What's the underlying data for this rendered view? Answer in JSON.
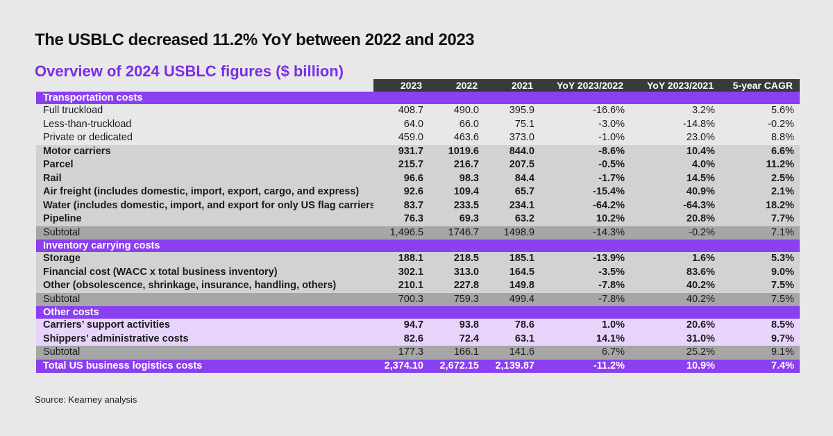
{
  "title": "The USBLC decreased 11.2% YoY between 2022 and 2023",
  "subtitle": "Overview of 2024 USBLC figures ($ billion)",
  "source": "Source: Kearney analysis",
  "colors": {
    "accent": "#8a3ff0",
    "subtitle": "#7a2ee6",
    "header_bg": "#3a3a3a",
    "light_purple": "#e8d4fb",
    "gray_bold_row": "#d2d2d2",
    "subtotal": "#a6a6a6",
    "background": "#e8e8e8"
  },
  "chart_data": {
    "type": "table",
    "columns": [
      "",
      "2023",
      "2022",
      "2021",
      "YoY 2023/2022",
      "YoY 2023/2021",
      "5-year CAGR"
    ],
    "rows": [
      {
        "kind": "section",
        "cells": [
          "Transportation costs",
          "",
          "",
          "",
          "",
          "",
          ""
        ]
      },
      {
        "kind": "plain",
        "cells": [
          "Full truckload",
          "408.7",
          "490.0",
          "395.9",
          "-16.6%",
          "3.2%",
          "5.6%"
        ]
      },
      {
        "kind": "plain",
        "cells": [
          "Less-than-truckload",
          "64.0",
          "66.0",
          "75.1",
          "-3.0%",
          "-14.8%",
          "-0.2%"
        ]
      },
      {
        "kind": "plain",
        "cells": [
          "Private or dedicated",
          "459.0",
          "463.6",
          "373.0",
          "-1.0%",
          "23.0%",
          "8.8%"
        ]
      },
      {
        "kind": "bold",
        "cells": [
          "Motor carriers",
          "931.7",
          "1019.6",
          "844.0",
          "-8.6%",
          "10.4%",
          "6.6%"
        ]
      },
      {
        "kind": "bold",
        "cells": [
          "Parcel",
          "215.7",
          "216.7",
          "207.5",
          "-0.5%",
          "4.0%",
          "11.2%"
        ]
      },
      {
        "kind": "bold",
        "cells": [
          "Rail",
          "96.6",
          "98.3",
          "84.4",
          "-1.7%",
          "14.5%",
          "2.5%"
        ]
      },
      {
        "kind": "bold",
        "cells": [
          "Air freight (includes domestic, import, export, cargo, and express)",
          "92.6",
          "109.4",
          "65.7",
          "-15.4%",
          "40.9%",
          "2.1%"
        ]
      },
      {
        "kind": "bold",
        "cells": [
          "Water (includes domestic, import, and export for only US flag carriers)",
          "83.7",
          "233.5",
          "234.1",
          "-64.2%",
          "-64.3%",
          "18.2%"
        ]
      },
      {
        "kind": "bold",
        "cells": [
          "Pipeline",
          "76.3",
          "69.3",
          "63.2",
          "10.2%",
          "20.8%",
          "7.7%"
        ]
      },
      {
        "kind": "subtotal",
        "cells": [
          "Subtotal",
          "1,496.5",
          "1746.7",
          "1498.9",
          "-14.3%",
          "-0.2%",
          "7.1%"
        ]
      },
      {
        "kind": "section",
        "cells": [
          "Inventory carrying costs",
          "",
          "",
          "",
          "",
          "",
          ""
        ]
      },
      {
        "kind": "bold",
        "cells": [
          "Storage",
          "188.1",
          "218.5",
          "185.1",
          "-13.9%",
          "1.6%",
          "5.3%"
        ]
      },
      {
        "kind": "bold",
        "cells": [
          "Financial cost (WACC x total business inventory)",
          "302.1",
          "313.0",
          "164.5",
          "-3.5%",
          "83.6%",
          "9.0%"
        ]
      },
      {
        "kind": "bold",
        "cells": [
          "Other (obsolescence, shrinkage, insurance, handling, others)",
          "210.1",
          "227.8",
          "149.8",
          "-7.8%",
          "40.2%",
          "7.5%"
        ]
      },
      {
        "kind": "subtotal",
        "cells": [
          "Subtotal",
          "700.3",
          "759.3",
          "499.4",
          "-7.8%",
          "40.2%",
          "7.5%"
        ]
      },
      {
        "kind": "section",
        "cells": [
          "Other costs",
          "",
          "",
          "",
          "",
          "",
          ""
        ]
      },
      {
        "kind": "purple",
        "cells": [
          "Carriers’ support activities",
          "94.7",
          "93.8",
          "78.6",
          "1.0%",
          "20.6%",
          "8.5%"
        ]
      },
      {
        "kind": "purple",
        "cells": [
          "Shippers’ administrative costs",
          "82.6",
          "72.4",
          "63.1",
          "14.1%",
          "31.0%",
          "9.7%"
        ]
      },
      {
        "kind": "subtotal",
        "cells": [
          "Subtotal",
          "177.3",
          "166.1",
          "141.6",
          "6.7%",
          "25.2%",
          "9.1%"
        ]
      },
      {
        "kind": "total",
        "cells": [
          "Total US business logistics costs",
          "2,374.10",
          "2,672.15",
          "2,139.87",
          "-11.2%",
          "10.9%",
          "7.4%"
        ]
      }
    ]
  }
}
